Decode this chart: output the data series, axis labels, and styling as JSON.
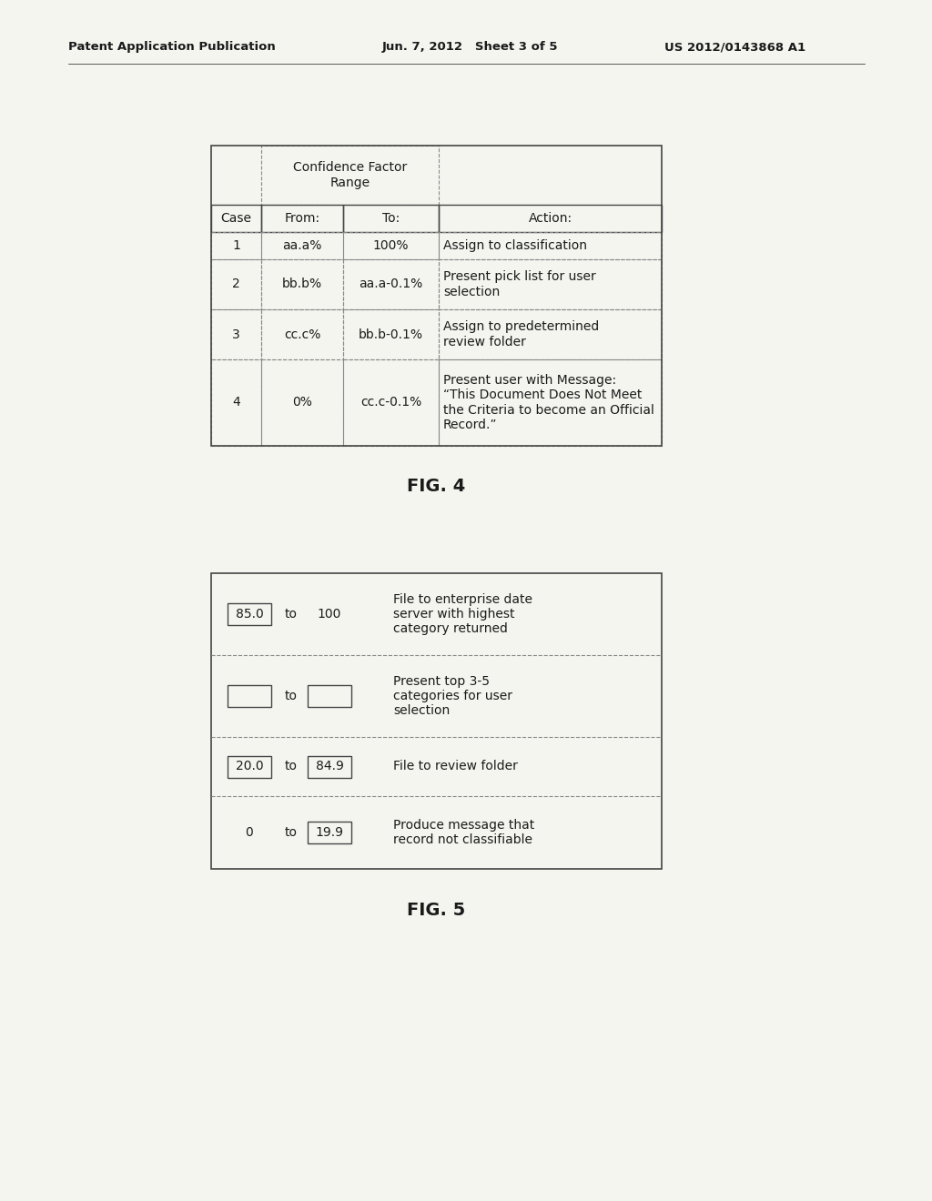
{
  "header_left": "Patent Application Publication",
  "header_mid": "Jun. 7, 2012   Sheet 3 of 5",
  "header_right": "US 2012/0143868 A1",
  "fig4_label": "FIG. 4",
  "fig5_label": "FIG. 5",
  "table1": {
    "conf_header": "Confidence Factor\nRange",
    "col_headers": [
      "Case",
      "From:",
      "To:",
      "Action:"
    ],
    "rows": [
      [
        "1",
        "aa.a%",
        "100%",
        "Assign to classification"
      ],
      [
        "2",
        "bb.b%",
        "aa.a-0.1%",
        "Present pick list for user\nselection"
      ],
      [
        "3",
        "cc.c%",
        "bb.b-0.1%",
        "Assign to predetermined\nreview folder"
      ],
      [
        "4",
        "0%",
        "cc.c-0.1%",
        "Present user with Message:\n“This Document Does Not Meet\nthe Criteria to become an Official\nRecord.”"
      ]
    ]
  },
  "table2_rows": [
    {
      "from_val": "85.0",
      "from_box": true,
      "to_word": "to",
      "to_val": "100",
      "to_box": false,
      "action": "File to enterprise date\nserver with highest\ncategory returned"
    },
    {
      "from_val": "",
      "from_box": true,
      "to_word": "to",
      "to_val": "",
      "to_box": true,
      "action": "Present top 3-5\ncategories for user\nselection"
    },
    {
      "from_val": "20.0",
      "from_box": true,
      "to_word": "to",
      "to_val": "84.9",
      "to_box": true,
      "action": "File to review folder"
    },
    {
      "from_val": "0",
      "from_box": false,
      "to_word": "to",
      "to_val": "19.9",
      "to_box": true,
      "action": "Produce message that\nrecord not classifiable"
    }
  ],
  "bg_color": "#f5f5f0",
  "text_color": "#1a1a1a",
  "border_color": "#444444",
  "dashed_color": "#888888"
}
